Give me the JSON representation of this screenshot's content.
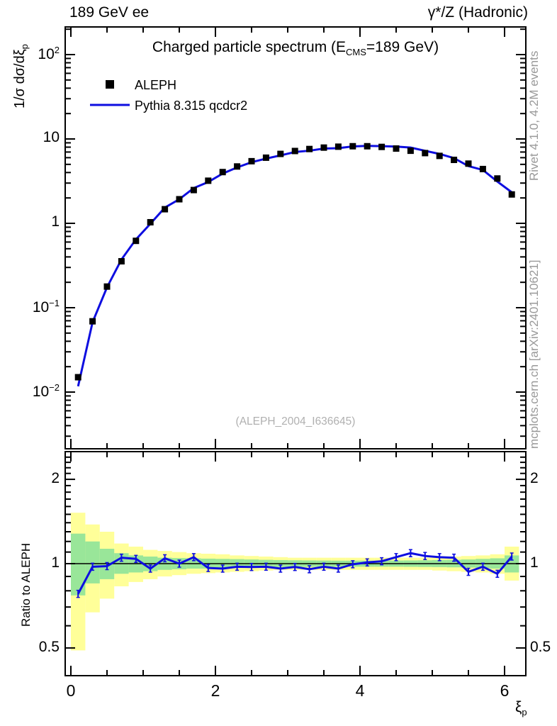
{
  "header": {
    "left": "189 GeV ee",
    "right": "γ*/Z (Hadronic)"
  },
  "title": {
    "pre": "Charged particle spectrum (E",
    "sub": "CMS",
    "post": "=189 GeV)"
  },
  "legend": [
    {
      "label": "ALEPH",
      "marker": "black-square"
    },
    {
      "label": "Pythia 8.315 qcdcr2",
      "marker": "blue-line"
    }
  ],
  "watermark": "(ALEPH_2004_I636645)",
  "side_notes": {
    "top": "Rivet 4.1.0,  4.2M events",
    "bottom": "mcplots.cern.ch [arXiv:2401.10621]"
  },
  "axes": {
    "main_y_label": {
      "pre": "1/σ  dσ/dξ",
      "sub": "p"
    },
    "ratio_y_label": "Ratio to ALEPH",
    "x_label": {
      "pre": "ξ",
      "sub": "p"
    },
    "main_y_ticks": [
      {
        "v": 100,
        "base": "10",
        "exp": "2"
      },
      {
        "v": 10,
        "base": "10",
        "exp": ""
      },
      {
        "v": 1,
        "base": "1",
        "exp": ""
      },
      {
        "v": 0.1,
        "base": "10",
        "exp": "−1"
      },
      {
        "v": 0.01,
        "base": "10",
        "exp": "−2"
      }
    ],
    "x_ticks": [
      {
        "v": 0,
        "label": "0"
      },
      {
        "v": 2,
        "label": "2"
      },
      {
        "v": 4,
        "label": "4"
      },
      {
        "v": 6,
        "label": "6"
      }
    ],
    "ratio_y_ticks": [
      {
        "v": 2,
        "label": "2"
      },
      {
        "v": 1,
        "label": "1"
      },
      {
        "v": 0.5,
        "label": "0.5"
      }
    ]
  },
  "colors": {
    "mc_line": "#0e0ee0",
    "data_marker": "#000000",
    "band_inner": "#99e699",
    "band_outer": "#ffff99",
    "side_text": "#999999",
    "watermark": "#b0b0b0"
  },
  "chart_data": {
    "type": "line",
    "title": "Charged particle spectrum (E_CMS=189 GeV)",
    "xlabel": "ξ_p",
    "ylabel": "1/σ dσ/dξ_p",
    "ratio_ylabel": "Ratio to ALEPH",
    "x_range": [
      -0.08,
      6.3
    ],
    "y_log_range": [
      0.002,
      210
    ],
    "ratio_log_range": [
      0.4,
      2.5
    ],
    "grid": false,
    "legend_position": "top-left",
    "bin_width": 0.2,
    "x": [
      0.1,
      0.3,
      0.5,
      0.7,
      0.9,
      1.1,
      1.3,
      1.5,
      1.7,
      1.9,
      2.1,
      2.3,
      2.5,
      2.7,
      2.9,
      3.1,
      3.3,
      3.5,
      3.7,
      3.9,
      4.1,
      4.3,
      4.5,
      4.7,
      4.9,
      5.1,
      5.3,
      5.5,
      5.7,
      5.9,
      6.1
    ],
    "series": [
      {
        "name": "ALEPH",
        "style": "black-squares",
        "values": [
          0.015,
          0.069,
          0.178,
          0.355,
          0.62,
          1.03,
          1.47,
          1.93,
          2.48,
          3.2,
          4.05,
          4.72,
          5.45,
          6.0,
          6.65,
          7.2,
          7.6,
          7.9,
          8.1,
          8.2,
          8.2,
          8.05,
          7.7,
          7.25,
          6.8,
          6.3,
          5.65,
          5.1,
          4.4,
          3.4,
          2.2
        ]
      },
      {
        "name": "Pythia 8.315 qcdcr2",
        "style": "blue-line",
        "ratio_to_data": [
          0.78,
          0.975,
          0.98,
          1.05,
          1.04,
          0.96,
          1.045,
          1.0,
          1.055,
          0.965,
          0.96,
          0.975,
          0.973,
          0.975,
          0.96,
          0.973,
          0.955,
          0.975,
          0.96,
          0.995,
          1.01,
          1.02,
          1.055,
          1.09,
          1.065,
          1.055,
          1.05,
          0.935,
          0.975,
          0.92,
          1.06
        ]
      }
    ],
    "ratio_bands": {
      "outer_lo": [
        0.49,
        0.67,
        0.75,
        0.83,
        0.86,
        0.88,
        0.9,
        0.91,
        0.92,
        0.925,
        0.93,
        0.935,
        0.94,
        0.945,
        0.95,
        0.95,
        0.95,
        0.95,
        0.95,
        0.95,
        0.95,
        0.95,
        0.95,
        0.95,
        0.95,
        0.945,
        0.94,
        0.935,
        0.93,
        0.92,
        0.87
      ],
      "outer_hi": [
        1.52,
        1.38,
        1.3,
        1.18,
        1.15,
        1.12,
        1.11,
        1.1,
        1.09,
        1.085,
        1.08,
        1.07,
        1.065,
        1.06,
        1.055,
        1.05,
        1.05,
        1.05,
        1.05,
        1.05,
        1.05,
        1.05,
        1.05,
        1.05,
        1.05,
        1.055,
        1.06,
        1.065,
        1.07,
        1.08,
        1.15
      ],
      "inner_lo": [
        0.77,
        0.85,
        0.88,
        0.92,
        0.93,
        0.94,
        0.95,
        0.955,
        0.96,
        0.96,
        0.965,
        0.965,
        0.97,
        0.97,
        0.972,
        0.973,
        0.974,
        0.975,
        0.975,
        0.975,
        0.975,
        0.975,
        0.975,
        0.974,
        0.973,
        0.972,
        0.97,
        0.968,
        0.965,
        0.96,
        0.93
      ],
      "inner_hi": [
        1.28,
        1.2,
        1.13,
        1.09,
        1.07,
        1.06,
        1.05,
        1.047,
        1.045,
        1.042,
        1.04,
        1.038,
        1.035,
        1.032,
        1.03,
        1.028,
        1.027,
        1.026,
        1.025,
        1.025,
        1.025,
        1.025,
        1.026,
        1.027,
        1.028,
        1.03,
        1.032,
        1.035,
        1.04,
        1.045,
        1.07
      ]
    }
  }
}
